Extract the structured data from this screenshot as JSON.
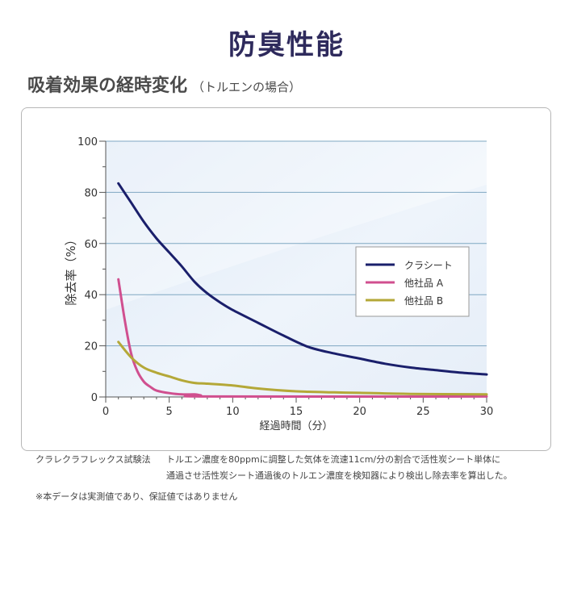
{
  "header": {
    "title": "防臭性能",
    "subtitle_main": "吸着効果の経時変化",
    "subtitle_sub": "（トルエンの場合）"
  },
  "chart_data": {
    "type": "line",
    "xlabel": "経過時間（分）",
    "ylabel": "除去率（%）",
    "xlim": [
      0,
      30
    ],
    "ylim": [
      0,
      100
    ],
    "x_ticks": [
      "0",
      "5",
      "10",
      "15",
      "20",
      "25",
      "30"
    ],
    "y_ticks": [
      "0",
      "20",
      "40",
      "60",
      "80",
      "100"
    ],
    "grid": "horizontal",
    "legend_position": "right",
    "series": [
      {
        "name": "クラシート",
        "color": "#1a1f6b",
        "x": [
          1,
          2,
          3,
          4,
          5,
          6,
          7,
          8,
          9,
          10,
          12,
          14,
          16,
          18,
          20,
          22,
          24,
          26,
          28,
          30
        ],
        "y": [
          83.5,
          76,
          68.5,
          62,
          56.5,
          51,
          45,
          40.5,
          37,
          34,
          29,
          24,
          19.5,
          17,
          15,
          13,
          11.5,
          10.5,
          9.5,
          8.8
        ]
      },
      {
        "name": "他社品 A",
        "color": "#d04f8f",
        "x": [
          1,
          1.5,
          2,
          2.5,
          3,
          3.5,
          4,
          5,
          6,
          7,
          7.5,
          8,
          30
        ],
        "y": [
          46,
          30,
          17,
          10,
          6,
          4,
          2.5,
          1.5,
          1,
          1,
          0.6,
          0.2,
          0.2
        ]
      },
      {
        "name": "他社品 B",
        "color": "#b4a838",
        "x": [
          1,
          2,
          3,
          4,
          5,
          6,
          7,
          8,
          10,
          12,
          15,
          18,
          20,
          24,
          30
        ],
        "y": [
          21.5,
          15.5,
          11.5,
          9.5,
          8,
          6.5,
          5.5,
          5.2,
          4.5,
          3.3,
          2.2,
          1.8,
          1.6,
          1.2,
          1.0
        ]
      }
    ]
  },
  "notes": {
    "method_label": "クラレクラフレックス試験法",
    "method_line1": "トルエン濃度を80ppmに調整した気体を流速11cm/分の割合で活性炭シート単体に",
    "method_line2": "通過させ活性炭シート通過後のトルエン濃度を検知器により検出し除去率を算出した。",
    "disclaimer": "※本データは実測値であり、保証値ではありません"
  }
}
